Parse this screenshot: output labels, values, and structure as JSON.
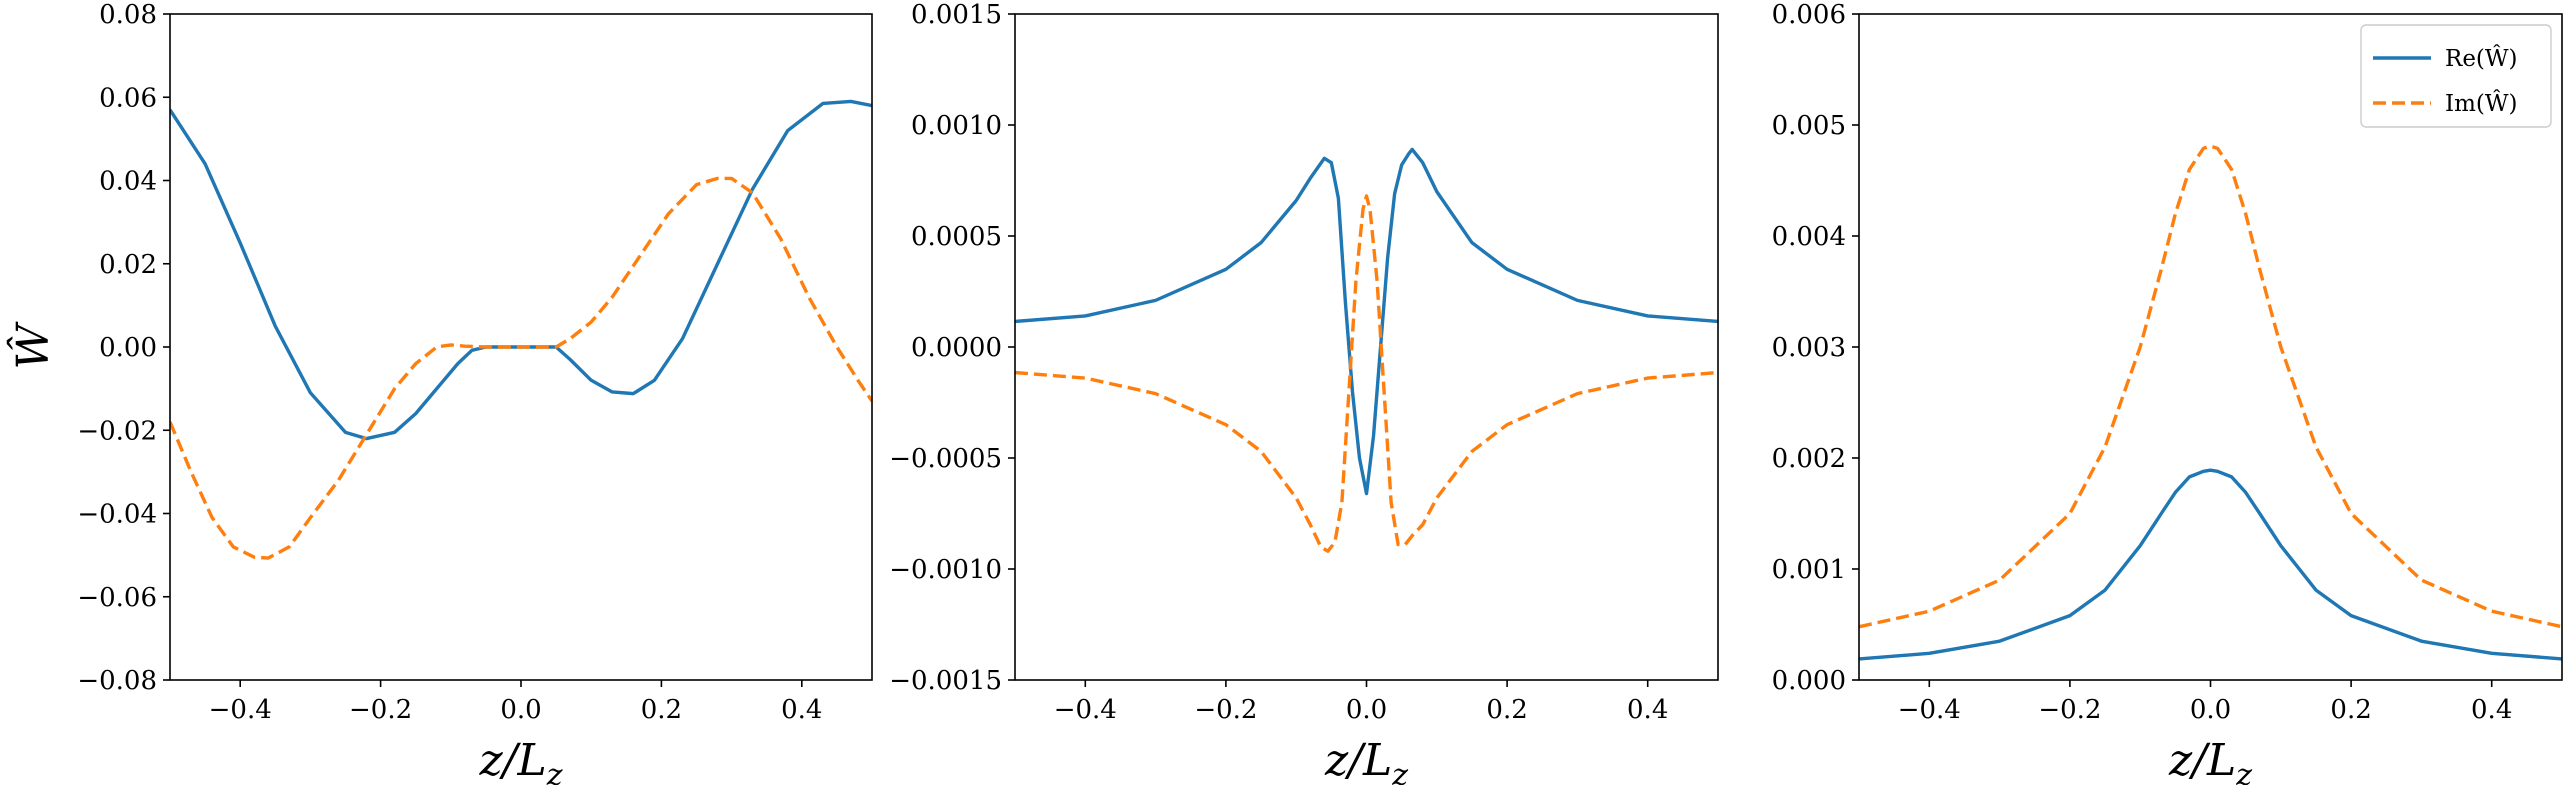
{
  "chart_data": [
    {
      "type": "line",
      "xlabel": "z/L_z",
      "ylabel": "Ŵ",
      "xlim": [
        -0.5,
        0.5
      ],
      "ylim": [
        -0.08,
        0.08
      ],
      "xticks": [
        -0.4,
        -0.2,
        0.0,
        0.2,
        0.4
      ],
      "xtick_labels": [
        "−0.4",
        "−0.2",
        "0.0",
        "0.2",
        "0.4"
      ],
      "yticks": [
        -0.08,
        -0.06,
        -0.04,
        -0.02,
        0.0,
        0.02,
        0.04,
        0.06,
        0.08
      ],
      "ytick_labels": [
        "−0.08",
        "−0.06",
        "−0.04",
        "−0.02",
        "0.00",
        "0.02",
        "0.04",
        "0.06",
        "0.08"
      ],
      "series": [
        {
          "name": "Re(Ŵ)",
          "color": "#1f77b4",
          "dash": "solid",
          "x": [
            -0.5,
            -0.45,
            -0.4,
            -0.35,
            -0.3,
            -0.25,
            -0.22,
            -0.18,
            -0.15,
            -0.12,
            -0.09,
            -0.07,
            -0.05,
            0.0,
            0.05,
            0.07,
            0.1,
            0.13,
            0.16,
            0.19,
            0.23,
            0.28,
            0.33,
            0.38,
            0.43,
            0.47,
            0.5
          ],
          "y": [
            0.057,
            0.044,
            0.025,
            0.005,
            -0.011,
            -0.0205,
            -0.022,
            -0.0205,
            -0.016,
            -0.01,
            -0.004,
            -0.0008,
            0.0,
            0.0,
            0.0,
            -0.003,
            -0.008,
            -0.0108,
            -0.0112,
            -0.008,
            0.002,
            0.02,
            0.038,
            0.052,
            0.0585,
            0.059,
            0.058
          ]
        },
        {
          "name": "Im(Ŵ)",
          "color": "#ff7f0e",
          "dash": "dashed",
          "x": [
            -0.5,
            -0.47,
            -0.44,
            -0.41,
            -0.38,
            -0.36,
            -0.33,
            -0.3,
            -0.26,
            -0.22,
            -0.18,
            -0.15,
            -0.12,
            -0.1,
            -0.08,
            -0.05,
            0.0,
            0.05,
            0.07,
            0.1,
            0.13,
            0.17,
            0.21,
            0.25,
            0.28,
            0.3,
            0.33,
            0.37,
            0.41,
            0.45,
            0.48,
            0.5
          ],
          "y": [
            -0.018,
            -0.03,
            -0.041,
            -0.048,
            -0.0505,
            -0.0507,
            -0.048,
            -0.041,
            -0.032,
            -0.021,
            -0.01,
            -0.004,
            0.0,
            0.0005,
            0.0002,
            0.0,
            0.0,
            0.0,
            0.002,
            0.006,
            0.012,
            0.022,
            0.032,
            0.039,
            0.0405,
            0.0405,
            0.037,
            0.026,
            0.012,
            0.0,
            -0.008,
            -0.013
          ]
        }
      ]
    },
    {
      "type": "line",
      "xlabel": "z/L_z",
      "ylabel": "",
      "xlim": [
        -0.5,
        0.5
      ],
      "ylim": [
        -0.0015,
        0.0015
      ],
      "xticks": [
        -0.4,
        -0.2,
        0.0,
        0.2,
        0.4
      ],
      "xtick_labels": [
        "−0.4",
        "−0.2",
        "0.0",
        "0.2",
        "0.4"
      ],
      "yticks": [
        -0.0015,
        -0.001,
        -0.0005,
        0.0,
        0.0005,
        0.001,
        0.0015
      ],
      "ytick_labels": [
        "−0.0015",
        "−0.0010",
        "−0.0005",
        "0.0000",
        "0.0005",
        "0.0010",
        "0.0015"
      ],
      "series": [
        {
          "name": "Re(Ŵ)",
          "color": "#1f77b4",
          "dash": "solid",
          "x": [
            -0.5,
            -0.4,
            -0.3,
            -0.2,
            -0.15,
            -0.1,
            -0.08,
            -0.06,
            -0.05,
            -0.04,
            -0.03,
            -0.02,
            -0.01,
            0.0,
            0.01,
            0.02,
            0.03,
            0.04,
            0.05,
            0.06,
            0.065,
            0.08,
            0.1,
            0.15,
            0.2,
            0.3,
            0.4,
            0.5
          ],
          "y": [
            0.000115,
            0.00014,
            0.00021,
            0.00035,
            0.00047,
            0.00066,
            0.00076,
            0.00085,
            0.00083,
            0.00067,
            0.0002,
            -0.0002,
            -0.0005,
            -0.00066,
            -0.0004,
            0.0,
            0.0004,
            0.00069,
            0.00082,
            0.00087,
            0.00089,
            0.00083,
            0.0007,
            0.00047,
            0.00035,
            0.00021,
            0.00014,
            0.000115
          ]
        },
        {
          "name": "Im(Ŵ)",
          "color": "#ff7f0e",
          "dash": "dashed",
          "x": [
            -0.5,
            -0.4,
            -0.3,
            -0.2,
            -0.15,
            -0.1,
            -0.08,
            -0.065,
            -0.055,
            -0.045,
            -0.035,
            -0.025,
            -0.015,
            -0.005,
            0.0,
            0.005,
            0.015,
            0.025,
            0.035,
            0.045,
            0.055,
            0.065,
            0.08,
            0.1,
            0.15,
            0.2,
            0.3,
            0.4,
            0.5
          ],
          "y": [
            -0.000115,
            -0.00014,
            -0.00021,
            -0.00035,
            -0.00047,
            -0.00068,
            -0.0008,
            -0.0009,
            -0.00092,
            -0.00088,
            -0.0007,
            -0.0002,
            0.0003,
            0.00062,
            0.00068,
            0.00062,
            0.0003,
            -0.0002,
            -0.0007,
            -0.00089,
            -0.00089,
            -0.00085,
            -0.0008,
            -0.00068,
            -0.00047,
            -0.00035,
            -0.00021,
            -0.00014,
            -0.000115
          ]
        }
      ]
    },
    {
      "type": "line",
      "xlabel": "z/L_z",
      "ylabel": "",
      "xlim": [
        -0.5,
        0.5
      ],
      "ylim": [
        0.0,
        0.006
      ],
      "xticks": [
        -0.4,
        -0.2,
        0.0,
        0.2,
        0.4
      ],
      "xtick_labels": [
        "−0.4",
        "−0.2",
        "0.0",
        "0.2",
        "0.4"
      ],
      "yticks": [
        0.0,
        0.001,
        0.002,
        0.003,
        0.004,
        0.005,
        0.006
      ],
      "ytick_labels": [
        "0.000",
        "0.001",
        "0.002",
        "0.003",
        "0.004",
        "0.005",
        "0.006"
      ],
      "legend": "top-right",
      "series": [
        {
          "name": "Re(Ŵ)",
          "color": "#1f77b4",
          "dash": "solid",
          "x": [
            -0.5,
            -0.4,
            -0.3,
            -0.2,
            -0.15,
            -0.1,
            -0.07,
            -0.05,
            -0.03,
            -0.01,
            0.0,
            0.01,
            0.03,
            0.05,
            0.07,
            0.1,
            0.15,
            0.2,
            0.3,
            0.4,
            0.5
          ],
          "y": [
            0.00019,
            0.00024,
            0.00035,
            0.00058,
            0.00081,
            0.00121,
            0.0015,
            0.00169,
            0.00183,
            0.00188,
            0.00189,
            0.00188,
            0.00183,
            0.00169,
            0.0015,
            0.00121,
            0.00081,
            0.00058,
            0.00035,
            0.00024,
            0.00019
          ]
        },
        {
          "name": "Im(Ŵ)",
          "color": "#ff7f0e",
          "dash": "dashed",
          "x": [
            -0.5,
            -0.4,
            -0.3,
            -0.2,
            -0.15,
            -0.1,
            -0.07,
            -0.05,
            -0.03,
            -0.01,
            0.0,
            0.01,
            0.03,
            0.05,
            0.07,
            0.1,
            0.15,
            0.2,
            0.3,
            0.4,
            0.5
          ],
          "y": [
            0.00048,
            0.00062,
            0.0009,
            0.0015,
            0.0021,
            0.003,
            0.0037,
            0.0042,
            0.0046,
            0.00479,
            0.00481,
            0.00479,
            0.0046,
            0.0042,
            0.0037,
            0.003,
            0.0021,
            0.0015,
            0.0009,
            0.00062,
            0.00048
          ]
        }
      ]
    }
  ]
}
